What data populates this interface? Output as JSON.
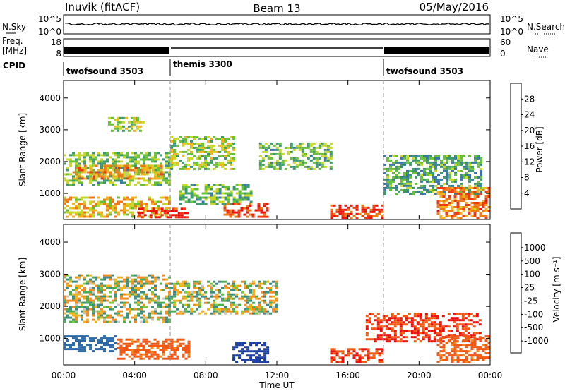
{
  "header": {
    "station": "Inuvik (fitACF)",
    "beam": "Beam 13",
    "date": "05/May/2016"
  },
  "top_panels": {
    "nsky_label": "N.Sky",
    "nsearch_label": "N.Search",
    "freq_label_1": "Freq.",
    "freq_label_2": "[MHz]",
    "nave_label": "Nave",
    "cpid_label": "CPID",
    "left_ticks_noise": [
      "10^5",
      "10^0"
    ],
    "right_ticks_noise": [
      "10^5",
      "10^0"
    ],
    "left_ticks_freq": [
      "18",
      "8"
    ],
    "right_ticks_freq": [
      "60",
      "0"
    ],
    "cpid_segments": [
      {
        "name": "twofsound 3503",
        "start": 0,
        "end": 6
      },
      {
        "name": "themis 3300",
        "start": 6,
        "end": 18
      },
      {
        "name": "twofsound 3503",
        "start": 18,
        "end": 24
      }
    ]
  },
  "axes": {
    "ylabel": "Slant Range [km]",
    "xlabel": "Time UT",
    "x_ticks": [
      "00:00",
      "04:00",
      "08:00",
      "12:00",
      "16:00",
      "20:00",
      "00:00"
    ],
    "y_ticks": [
      "1000",
      "2000",
      "3000",
      "4000"
    ]
  },
  "power_colorbar": {
    "label": "Power [dB]",
    "ticks": [
      "4",
      "8",
      "12",
      "16",
      "20",
      "24",
      "28"
    ],
    "colors": [
      "#0a1ee8",
      "#2a4fb0",
      "#3a78a8",
      "#3e9a6e",
      "#6abf3a",
      "#c8d82a",
      "#f2b21e",
      "#f07a18",
      "#ef3a12",
      "#e8120e"
    ]
  },
  "velocity_colorbar": {
    "label": "Velocity [m s⁻¹]",
    "ticks": [
      "1000",
      "500",
      "100",
      "25",
      "-25",
      "-100",
      "-500",
      "-1000"
    ],
    "colors": [
      "#1f3fa0",
      "#2e6aa8",
      "#3d8d82",
      "#4fae52",
      "#7cc83c",
      "#c8c8c0",
      "#f2b21e",
      "#f58a1e",
      "#f05a16",
      "#e8120e"
    ]
  },
  "chart_data": {
    "type": "heatmap",
    "x_range_hours": [
      0,
      24
    ],
    "y_range_km": [
      180,
      4550
    ],
    "mode_change_hours": [
      6,
      18
    ],
    "power_regions": [
      {
        "t0": 0.0,
        "t1": 6.0,
        "r0": 250,
        "r1": 900,
        "value": 20
      },
      {
        "t0": 4.2,
        "t1": 7.0,
        "r0": 250,
        "r1": 550,
        "value": 30
      },
      {
        "t0": 0.0,
        "t1": 6.0,
        "r0": 1300,
        "r1": 2300,
        "value": 14
      },
      {
        "t0": 0.5,
        "t1": 5.5,
        "r0": 1500,
        "r1": 1900,
        "value": 22
      },
      {
        "t0": 2.5,
        "t1": 4.5,
        "r0": 3000,
        "r1": 3400,
        "value": 16
      },
      {
        "t0": 6.0,
        "t1": 9.5,
        "r0": 1800,
        "r1": 2800,
        "value": 16
      },
      {
        "t0": 6.5,
        "t1": 10.5,
        "r0": 700,
        "r1": 1300,
        "value": 14
      },
      {
        "t0": 9.0,
        "t1": 11.5,
        "r0": 250,
        "r1": 700,
        "value": 28
      },
      {
        "t0": 11.0,
        "t1": 15.0,
        "r0": 1800,
        "r1": 2600,
        "value": 14
      },
      {
        "t0": 15.0,
        "t1": 18.0,
        "r0": 250,
        "r1": 650,
        "value": 28
      },
      {
        "t0": 18.0,
        "t1": 23.5,
        "r0": 1000,
        "r1": 2200,
        "value": 12
      },
      {
        "t0": 21.0,
        "t1": 24.0,
        "r0": 250,
        "r1": 1200,
        "value": 24
      }
    ],
    "velocity_regions": [
      {
        "t0": 0.0,
        "t1": 6.0,
        "r0": 1500,
        "r1": 3000,
        "value": 0
      },
      {
        "t0": 0.0,
        "t1": 3.0,
        "r0": 600,
        "r1": 1100,
        "value": 200
      },
      {
        "t0": 3.0,
        "t1": 7.0,
        "r0": 400,
        "r1": 1000,
        "value": -100
      },
      {
        "t0": 6.0,
        "t1": 12.0,
        "r0": 1800,
        "r1": 2800,
        "value": 0
      },
      {
        "t0": 9.5,
        "t1": 11.5,
        "r0": 300,
        "r1": 900,
        "value": 600
      },
      {
        "t0": 15.0,
        "t1": 18.0,
        "r0": 300,
        "r1": 700,
        "value": -300
      },
      {
        "t0": 17.0,
        "t1": 23.5,
        "r0": 900,
        "r1": 1800,
        "value": -300
      },
      {
        "t0": 21.0,
        "t1": 24.0,
        "r0": 250,
        "r1": 1100,
        "value": -100
      }
    ]
  }
}
